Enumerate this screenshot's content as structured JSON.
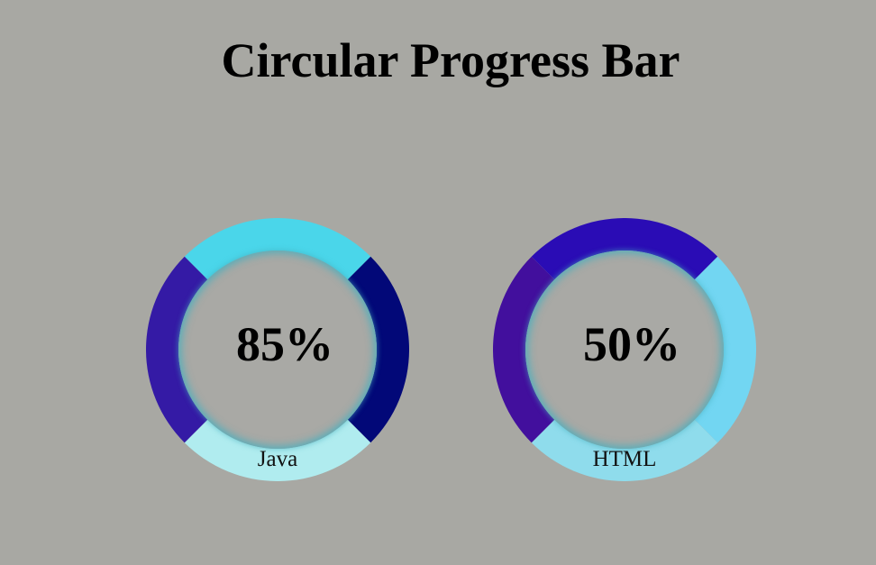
{
  "page": {
    "title": "Circular Progress Bar"
  },
  "progress_bars": [
    {
      "label": "Java",
      "percent_text": "85%",
      "value_percent": 85,
      "segment_colors": {
        "top": "#4ad6ea",
        "right": "#020878",
        "bottom": "#b0ecef",
        "left": "#341aa5"
      }
    },
    {
      "label": "HTML",
      "percent_text": "50%",
      "value_percent": 50,
      "segment_colors": {
        "top": "#2a0cb5",
        "right": "#72d6f2",
        "bottom": "#8fdcec",
        "left": "#420f9d"
      }
    }
  ]
}
